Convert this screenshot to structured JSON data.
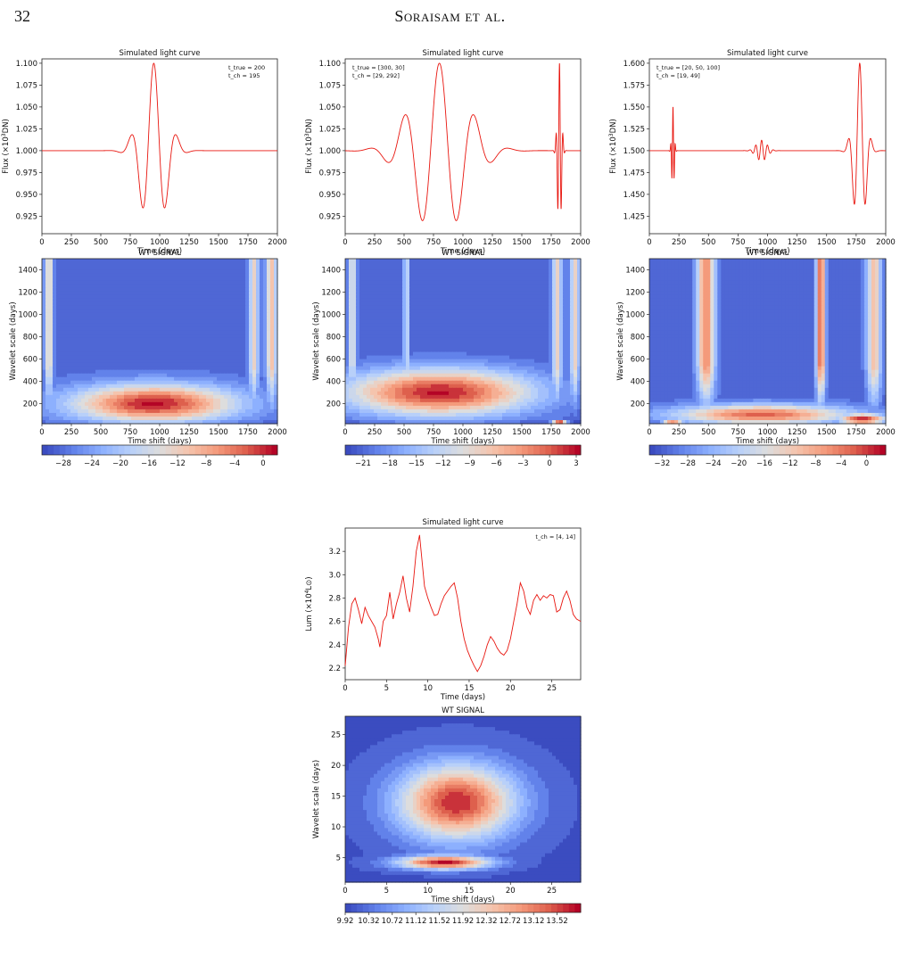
{
  "page": {
    "number": "32",
    "running_head": "Soraisam et al."
  },
  "panels": [
    {
      "title": "Simulated light curve",
      "ylabel_prefix": "Flux (×10",
      "ylabel_sup": "3",
      "ylabel_suffix": "DN)",
      "xlabel": "Time (days)",
      "xticks": [
        "0",
        "250",
        "500",
        "750",
        "1000",
        "1250",
        "1500",
        "1750",
        "2000"
      ],
      "yticks": [
        "0.925",
        "0.950",
        "0.975",
        "1.000",
        "1.025",
        "1.050",
        "1.075",
        "1.100"
      ],
      "annotations": [
        "t_true = 200",
        "t_ch = 195"
      ],
      "chart_data": {
        "type": "line",
        "xlim": [
          0,
          2000
        ],
        "ylim": [
          0.905,
          1.105
        ],
        "series": [
          {
            "color": "#e8160f",
            "bursts": [
              {
                "center": 950,
                "period": 200,
                "sigma": 260,
                "amp": 0.1
              }
            ]
          }
        ],
        "baseline": 1.0
      }
    },
    {
      "title": "Simulated light curve",
      "ylabel_prefix": "Flux (×10",
      "ylabel_sup": "3",
      "ylabel_suffix": "DN)",
      "xlabel": "Time (days)",
      "xticks": [
        "0",
        "250",
        "500",
        "750",
        "1000",
        "1250",
        "1500",
        "1750",
        "2000"
      ],
      "yticks": [
        "0.925",
        "0.950",
        "0.975",
        "1.000",
        "1.025",
        "1.050",
        "1.075",
        "1.100"
      ],
      "annotations": [
        "t_true = [300, 30]",
        "t_ch = [29, 292]"
      ],
      "chart_data": {
        "type": "line",
        "xlim": [
          0,
          2000
        ],
        "ylim": [
          0.905,
          1.105
        ],
        "series": [
          {
            "color": "#e8160f",
            "bursts": [
              {
                "center": 800,
                "period": 300,
                "sigma": 550,
                "amp": 0.1
              },
              {
                "center": 1820,
                "period": 30,
                "sigma": 40,
                "amp": 0.1
              }
            ]
          }
        ],
        "baseline": 1.0
      }
    },
    {
      "title": "Simulated light curve",
      "ylabel_prefix": "Flux (×10",
      "ylabel_sup": "3",
      "ylabel_suffix": "DN)",
      "xlabel": "Time (days)",
      "xticks": [
        "0",
        "250",
        "500",
        "750",
        "1000",
        "1250",
        "1500",
        "1750",
        "2000"
      ],
      "yticks": [
        "1.425",
        "1.450",
        "1.475",
        "1.500",
        "1.525",
        "1.550",
        "1.575",
        "1.600"
      ],
      "annotations": [
        "t_true = [20, 50, 100]",
        "t_ch = [19, 49]"
      ],
      "chart_data": {
        "type": "line",
        "xlim": [
          0,
          2000
        ],
        "ylim": [
          1.405,
          1.605
        ],
        "series": [
          {
            "color": "#e8160f",
            "bursts": [
              {
                "center": 200,
                "period": 20,
                "sigma": 25,
                "amp": 0.05
              },
              {
                "center": 950,
                "period": 50,
                "sigma": 110,
                "amp": 0.012
              },
              {
                "center": 1780,
                "period": 100,
                "sigma": 120,
                "amp": 0.1
              }
            ]
          }
        ],
        "baseline": 1.5
      }
    },
    {
      "title": "Simulated light curve",
      "ylabel_prefix": "Lum (×10",
      "ylabel_sup": "4",
      "ylabel_suffix": "L⊙)",
      "xlabel": "Time (days)",
      "xticks": [
        "0",
        "5",
        "10",
        "15",
        "20",
        "25"
      ],
      "yticks": [
        "2.2",
        "2.4",
        "2.6",
        "2.8",
        "3.0",
        "3.2"
      ],
      "annotations": [
        "t_ch = [4, 14]"
      ],
      "chart_data": {
        "type": "line",
        "xlim": [
          0,
          28.5
        ],
        "ylim": [
          2.1,
          3.4
        ],
        "series": [
          {
            "color": "#e8160f",
            "points": [
              [
                0,
                2.22
              ],
              [
                0.4,
                2.55
              ],
              [
                0.8,
                2.75
              ],
              [
                1.2,
                2.8
              ],
              [
                1.6,
                2.7
              ],
              [
                2,
                2.58
              ],
              [
                2.4,
                2.72
              ],
              [
                2.8,
                2.65
              ],
              [
                3.2,
                2.6
              ],
              [
                3.6,
                2.55
              ],
              [
                4,
                2.45
              ],
              [
                4.2,
                2.38
              ],
              [
                4.6,
                2.6
              ],
              [
                5,
                2.65
              ],
              [
                5.4,
                2.85
              ],
              [
                5.8,
                2.62
              ],
              [
                6.2,
                2.75
              ],
              [
                6.6,
                2.85
              ],
              [
                7,
                2.99
              ],
              [
                7.4,
                2.8
              ],
              [
                7.8,
                2.68
              ],
              [
                8.2,
                2.9
              ],
              [
                8.6,
                3.2
              ],
              [
                9,
                3.34
              ],
              [
                9.3,
                3.12
              ],
              [
                9.6,
                2.9
              ],
              [
                10,
                2.8
              ],
              [
                10.4,
                2.72
              ],
              [
                10.8,
                2.65
              ],
              [
                11.2,
                2.66
              ],
              [
                11.6,
                2.75
              ],
              [
                12,
                2.82
              ],
              [
                12.4,
                2.86
              ],
              [
                12.8,
                2.9
              ],
              [
                13.2,
                2.93
              ],
              [
                13.6,
                2.8
              ],
              [
                14,
                2.6
              ],
              [
                14.4,
                2.45
              ],
              [
                14.8,
                2.35
              ],
              [
                15.2,
                2.28
              ],
              [
                15.6,
                2.22
              ],
              [
                16,
                2.17
              ],
              [
                16.4,
                2.22
              ],
              [
                16.8,
                2.3
              ],
              [
                17.2,
                2.4
              ],
              [
                17.6,
                2.47
              ],
              [
                18,
                2.43
              ],
              [
                18.4,
                2.37
              ],
              [
                18.8,
                2.33
              ],
              [
                19.2,
                2.31
              ],
              [
                19.6,
                2.35
              ],
              [
                20,
                2.45
              ],
              [
                20.4,
                2.6
              ],
              [
                20.8,
                2.75
              ],
              [
                21.2,
                2.93
              ],
              [
                21.6,
                2.86
              ],
              [
                22,
                2.72
              ],
              [
                22.4,
                2.66
              ],
              [
                22.8,
                2.78
              ],
              [
                23.2,
                2.83
              ],
              [
                23.6,
                2.78
              ],
              [
                24,
                2.82
              ],
              [
                24.4,
                2.8
              ],
              [
                24.8,
                2.83
              ],
              [
                25.2,
                2.82
              ],
              [
                25.6,
                2.68
              ],
              [
                26,
                2.7
              ],
              [
                26.4,
                2.8
              ],
              [
                26.8,
                2.86
              ],
              [
                27.2,
                2.78
              ],
              [
                27.6,
                2.66
              ],
              [
                28,
                2.62
              ],
              [
                28.5,
                2.6
              ]
            ]
          }
        ]
      }
    }
  ],
  "wt_panels": [
    {
      "title": "WT SIGNAL",
      "xlabel": "Time shift (days)",
      "ylabel": "Wavelet scale (days)",
      "xticks": [
        "0",
        "250",
        "500",
        "750",
        "1000",
        "1250",
        "1500",
        "1750",
        "2000"
      ],
      "yticks": [
        "200",
        "400",
        "600",
        "800",
        "1000",
        "1200",
        "1400"
      ],
      "colorbar_ticks": [
        "−28",
        "−24",
        "−20",
        "−16",
        "−12",
        "−8",
        "−4",
        "0"
      ],
      "chart_data": {
        "type": "heatmap",
        "xlim": [
          0,
          2000
        ],
        "ylim": [
          20,
          1500
        ],
        "zlim": [
          -31,
          2
        ],
        "base": -29,
        "floor": -31,
        "blobs": [
          {
            "x": 950,
            "y": 200,
            "sx": 700,
            "sy": 170,
            "peak": 1.5
          }
        ],
        "columns": [
          {
            "x": 60,
            "sx": 35,
            "peak": -12
          },
          {
            "x": 1800,
            "sx": 40,
            "peak": -12
          },
          {
            "x": 1950,
            "sx": 45,
            "peak": -10
          }
        ]
      }
    },
    {
      "title": "WT SIGNAL",
      "xlabel": "Time shift (days)",
      "ylabel": "Wavelet scale (days)",
      "xticks": [
        "0",
        "250",
        "500",
        "750",
        "1000",
        "1250",
        "1500",
        "1750",
        "2000"
      ],
      "yticks": [
        "200",
        "400",
        "600",
        "800",
        "1000",
        "1200",
        "1400"
      ],
      "colorbar_ticks": [
        "−21",
        "−18",
        "−15",
        "−12",
        "−9",
        "−6",
        "−3",
        "0",
        "3"
      ],
      "chart_data": {
        "type": "heatmap",
        "xlim": [
          0,
          2000
        ],
        "ylim": [
          20,
          1500
        ],
        "zlim": [
          -23,
          3.5
        ],
        "base": -22,
        "floor": -23,
        "blobs": [
          {
            "x": 800,
            "y": 300,
            "sx": 800,
            "sy": 210,
            "peak": 3
          },
          {
            "x": 1820,
            "y": 30,
            "sx": 60,
            "sy": 25,
            "peak": 3
          }
        ],
        "columns": [
          {
            "x": 60,
            "sx": 35,
            "peak": -10
          },
          {
            "x": 520,
            "sx": 25,
            "peak": -12
          },
          {
            "x": 1800,
            "sx": 45,
            "peak": -8
          },
          {
            "x": 1950,
            "sx": 40,
            "peak": -8
          }
        ]
      }
    },
    {
      "title": "WT SIGNAL",
      "xlabel": "Time shift (days)",
      "ylabel": "Wavelet scale (days)",
      "xticks": [
        "0",
        "250",
        "500",
        "750",
        "1000",
        "1250",
        "1500",
        "1750",
        "2000"
      ],
      "yticks": [
        "200",
        "400",
        "600",
        "800",
        "1000",
        "1200",
        "1400"
      ],
      "colorbar_ticks": [
        "−32",
        "−28",
        "−24",
        "−20",
        "−16",
        "−12",
        "−8",
        "−4",
        "0"
      ],
      "chart_data": {
        "type": "heatmap",
        "xlim": [
          0,
          2000
        ],
        "ylim": [
          20,
          1500
        ],
        "zlim": [
          -34,
          3
        ],
        "base": -32,
        "floor": -34,
        "blobs": [
          {
            "x": 950,
            "y": 100,
            "sx": 750,
            "sy": 90,
            "peak": -2
          },
          {
            "x": 200,
            "y": 25,
            "sx": 90,
            "sy": 25,
            "peak": 2
          },
          {
            "x": 1800,
            "y": 60,
            "sx": 200,
            "sy": 50,
            "peak": 2
          }
        ],
        "columns": [
          {
            "x": 480,
            "sx": 75,
            "peak": -5
          },
          {
            "x": 1450,
            "sx": 40,
            "peak": -3
          },
          {
            "x": 1900,
            "sx": 60,
            "peak": -10
          }
        ]
      }
    },
    {
      "title": "WT SIGNAL",
      "xlabel": "Time shift (days)",
      "ylabel": "Wavelet scale (days)",
      "xticks": [
        "0",
        "5",
        "10",
        "15",
        "20",
        "25"
      ],
      "yticks": [
        "5",
        "10",
        "15",
        "20",
        "25"
      ],
      "colorbar_ticks": [
        "9.92",
        "10.32",
        "10.72",
        "11.12",
        "11.52",
        "11.92",
        "12.32",
        "12.72",
        "13.12",
        "13.52"
      ],
      "chart_data": {
        "type": "heatmap",
        "xlim": [
          0,
          28.5
        ],
        "ylim": [
          1,
          28
        ],
        "zlim": [
          9.92,
          13.92
        ],
        "base": 10.0,
        "floor": 9.92,
        "blobs": [
          {
            "x": 13.5,
            "y": 14,
            "sx": 7,
            "sy": 6,
            "peak": 13.8
          },
          {
            "x": 12,
            "y": 4.2,
            "sx": 5.5,
            "sy": 1.1,
            "peak": 13.9
          }
        ],
        "columns": []
      }
    }
  ]
}
